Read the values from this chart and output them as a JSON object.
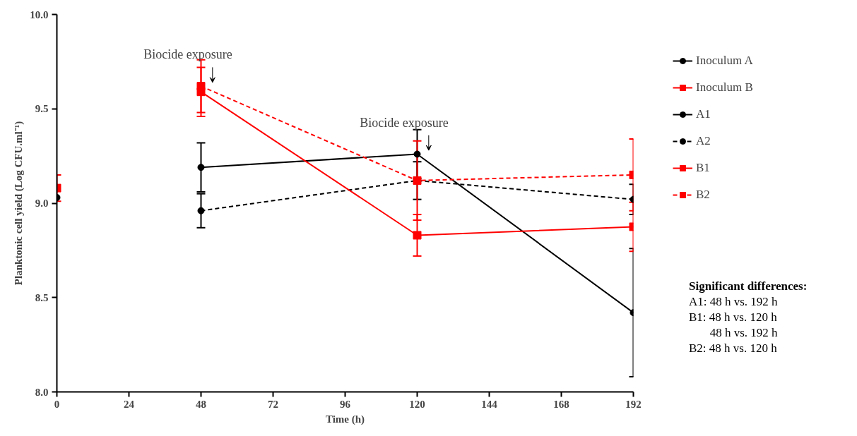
{
  "chart_data": {
    "type": "line",
    "xlabel": "Time (h)",
    "ylabel": "Planktonic cell yield (Log CFU.ml⁻¹)",
    "xlim": [
      0,
      192
    ],
    "xticks": [
      0,
      24,
      48,
      72,
      96,
      120,
      144,
      168,
      192
    ],
    "ylim": [
      8,
      10
    ],
    "yticks": [
      {
        "value": 8,
        "label": "8.0"
      },
      {
        "value": 8.5,
        "label": "8.5"
      },
      {
        "value": 9,
        "label": "9.0"
      },
      {
        "value": 9.5,
        "label": "9.5"
      },
      {
        "value": 10,
        "label": "10.0"
      }
    ],
    "grid": false,
    "legend": "right",
    "series": [
      {
        "name": "Inoculum A",
        "color": "#000000",
        "marker": "circle",
        "line_style": "solid",
        "x": [
          0
        ],
        "values": [
          9.03
        ]
      },
      {
        "name": "Inoculum B",
        "color": "#ff0000",
        "marker": "square",
        "line_style": "solid",
        "x": [
          0
        ],
        "values": [
          9.08
        ],
        "errors": [
          0.07
        ]
      },
      {
        "name": "A1",
        "color": "#000000",
        "marker": "circle",
        "line_style": "solid",
        "x": [
          48,
          120,
          192
        ],
        "values": [
          9.19,
          9.26,
          8.42
        ],
        "errors": [
          0.13,
          0.13,
          0.34
        ]
      },
      {
        "name": "A2",
        "color": "#000000",
        "marker": "circle",
        "line_style": "dashed",
        "x": [
          48,
          120,
          192
        ],
        "values": [
          8.96,
          9.12,
          9.02
        ],
        "errors": [
          0.09,
          0.1,
          0.08
        ]
      },
      {
        "name": "B1",
        "color": "#ff0000",
        "marker": "square",
        "line_style": "solid",
        "x": [
          48,
          120,
          192
        ],
        "values": [
          9.59,
          8.83,
          8.875
        ],
        "errors": [
          0.13,
          0.11,
          0.13
        ]
      },
      {
        "name": "B2",
        "color": "#ff0000",
        "marker": "square",
        "line_style": "dashed",
        "x": [
          48,
          120,
          192
        ],
        "values": [
          9.62,
          9.12,
          9.15
        ],
        "errors": [
          0.14,
          0.21,
          0.19
        ]
      }
    ],
    "annotations": [
      {
        "text": "Biocide exposure",
        "x": 48,
        "y": 9.62
      },
      {
        "text": "Biocide exposure",
        "x": 120,
        "y": 9.26
      },
      "Significant differences:",
      "A1: 48 h vs. 192 h",
      "B1: 48 h vs. 120 h",
      "       48 h vs. 192 h",
      "B2: 48 h vs. 120 h"
    ]
  }
}
